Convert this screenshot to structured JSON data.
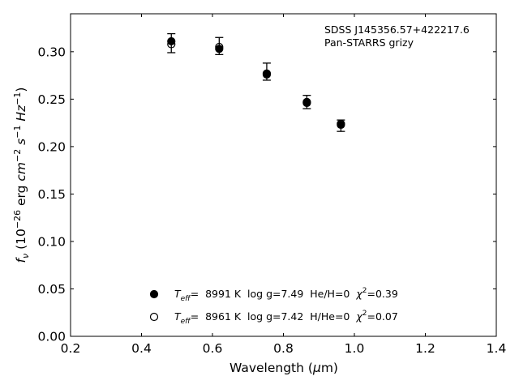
{
  "chart_data": {
    "type": "scatter",
    "annotation": {
      "line1": "SDSS J145356.57+422217.6",
      "line2": "Pan-STARRS grizy"
    },
    "xlabel": {
      "text": "Wavelength (",
      "unit_symbol": "μ",
      "unit": "m",
      "close": ")"
    },
    "ylabel": {
      "f": "f",
      "nu": "ν",
      "open": " (10",
      "exp1": "−26",
      "erg": " erg ",
      "cm": "cm",
      "exp2": "−2",
      "s": " s",
      "exp3": "−1",
      "hz": " Hz",
      "exp4": "−1",
      "close": ")"
    },
    "xlim": [
      0.2,
      1.4
    ],
    "ylim": [
      0.0,
      0.34
    ],
    "xticks": [
      "0.2",
      "0.4",
      "0.6",
      "0.8",
      "1.0",
      "1.2",
      "1.4"
    ],
    "xtick_values": [
      0.2,
      0.4,
      0.6,
      0.8,
      1.0,
      1.2,
      1.4
    ],
    "yticks": [
      "0.00",
      "0.05",
      "0.10",
      "0.15",
      "0.20",
      "0.25",
      "0.30"
    ],
    "ytick_values": [
      0.0,
      0.05,
      0.1,
      0.15,
      0.2,
      0.25,
      0.3
    ],
    "grid": false,
    "legend_placement": "lower-center",
    "observed": {
      "x": [
        0.484,
        0.619,
        0.753,
        0.866,
        0.962
      ],
      "y": [
        0.309,
        0.306,
        0.279,
        0.247,
        0.222
      ],
      "err": [
        0.01,
        0.009,
        0.009,
        0.007,
        0.006
      ]
    },
    "series": [
      {
        "marker": "filled",
        "teff_label": "T",
        "teff_sub": "eff",
        "text": "=  8991 K  log g=7.49  He/H=0  ",
        "chi": "χ",
        "chi_exp": "2",
        "chi_val": "=0.39",
        "x": [
          0.484,
          0.619,
          0.753,
          0.866,
          0.962
        ],
        "y": [
          0.311,
          0.303,
          0.277,
          0.246,
          0.223
        ]
      },
      {
        "marker": "open",
        "teff_label": "T",
        "teff_sub": "eff",
        "text": "=  8961 K  log g=7.42  H/He=0  ",
        "chi": "χ",
        "chi_exp": "2",
        "chi_val": "=0.07",
        "x": [
          0.484,
          0.619,
          0.753,
          0.866,
          0.962
        ],
        "y": [
          0.308,
          0.305,
          0.276,
          0.247,
          0.224
        ]
      }
    ]
  }
}
